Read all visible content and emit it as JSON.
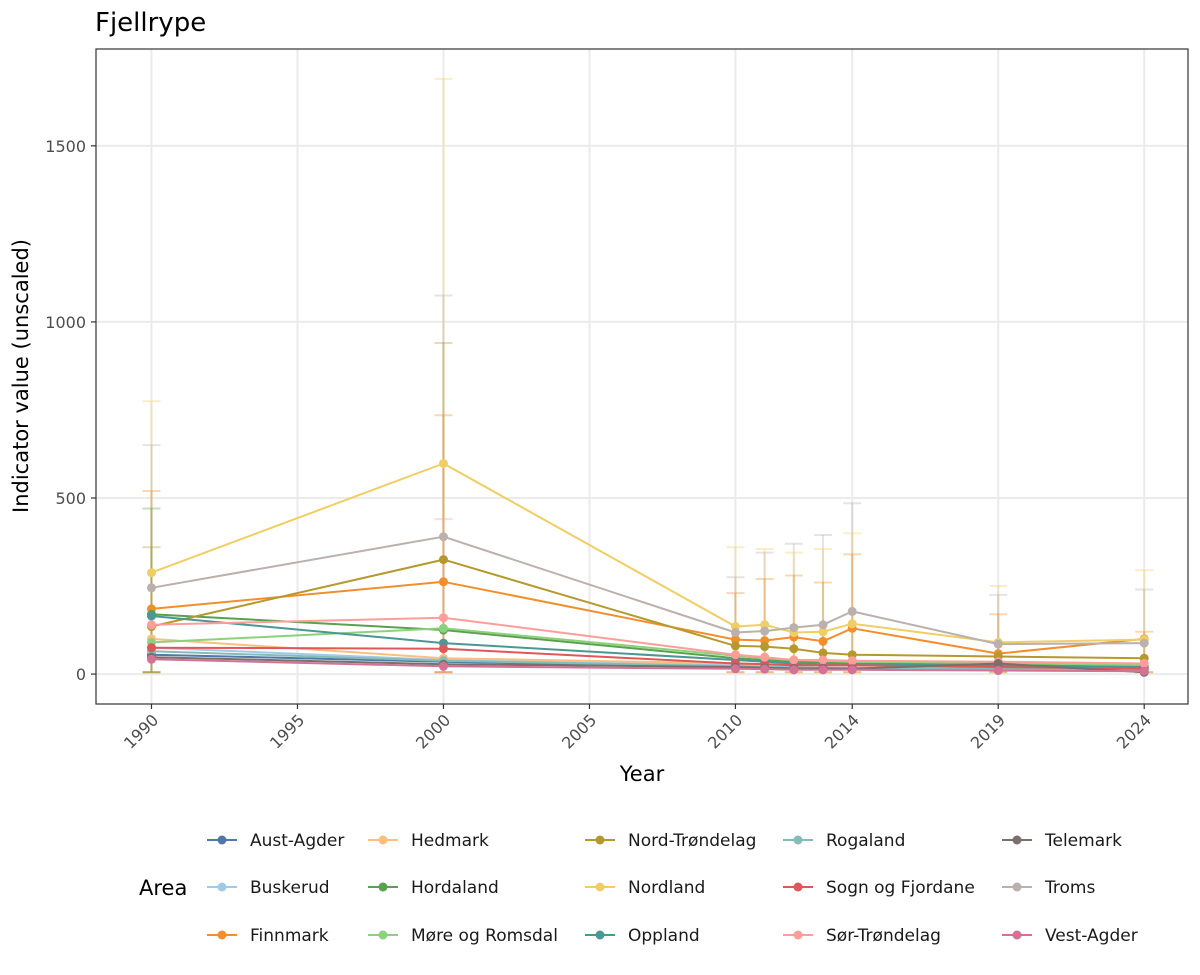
{
  "chart_data": {
    "type": "line",
    "title": "Fjellrype",
    "xlabel": "Year",
    "ylabel": "Indicator value (unscaled)",
    "xlim": [
      1988.1,
      2025.5
    ],
    "ylim": [
      -85,
      1775
    ],
    "x_ticks": [
      1990,
      1995,
      2000,
      2005,
      2010,
      2014,
      2019,
      2024
    ],
    "y_ticks": [
      0,
      500,
      1000,
      1500
    ],
    "grid": true,
    "legend_title": "Area",
    "legend_position": "bottom",
    "series": [
      {
        "name": "Aust-Agder",
        "color": "#4e79a7",
        "points": [
          [
            1990,
            55
          ],
          [
            2000,
            35
          ],
          [
            2010,
            18
          ],
          [
            2011,
            16
          ],
          [
            2012,
            14
          ],
          [
            2013,
            13
          ],
          [
            2014,
            13
          ],
          [
            2019,
            12
          ],
          [
            2024,
            10
          ]
        ]
      },
      {
        "name": "Buskerud",
        "color": "#a0cbe8",
        "points": [
          [
            1990,
            75
          ],
          [
            2000,
            40
          ],
          [
            2010,
            25
          ],
          [
            2011,
            22
          ],
          [
            2012,
            20
          ],
          [
            2013,
            18
          ],
          [
            2014,
            18
          ],
          [
            2019,
            16
          ],
          [
            2024,
            14
          ]
        ]
      },
      {
        "name": "Finnmark",
        "color": "#f28e2b",
        "points": [
          [
            1990,
            185
          ],
          [
            2000,
            262
          ],
          [
            2010,
            98
          ],
          [
            2011,
            95
          ],
          [
            2012,
            105
          ],
          [
            2013,
            93
          ],
          [
            2014,
            130
          ],
          [
            2019,
            58
          ],
          [
            2024,
            100
          ]
        ]
      },
      {
        "name": "Hedmark",
        "color": "#ffbe7d",
        "points": [
          [
            1990,
            100
          ],
          [
            2000,
            45
          ],
          [
            2010,
            30
          ],
          [
            2011,
            28
          ],
          [
            2012,
            26
          ],
          [
            2013,
            25
          ],
          [
            2014,
            24
          ],
          [
            2019,
            22
          ],
          [
            2024,
            20
          ]
        ]
      },
      {
        "name": "Hordaland",
        "color": "#59a14f",
        "points": [
          [
            1990,
            170
          ],
          [
            2000,
            125
          ],
          [
            2010,
            45
          ],
          [
            2011,
            40
          ],
          [
            2012,
            35
          ],
          [
            2013,
            33
          ],
          [
            2014,
            30
          ],
          [
            2019,
            27
          ],
          [
            2024,
            20
          ]
        ]
      },
      {
        "name": "Møre og Romsdal",
        "color": "#8cd17d",
        "points": [
          [
            1990,
            90
          ],
          [
            2000,
            130
          ],
          [
            2010,
            52
          ],
          [
            2011,
            45
          ],
          [
            2012,
            40
          ],
          [
            2013,
            37
          ],
          [
            2014,
            35
          ],
          [
            2019,
            32
          ],
          [
            2024,
            25
          ]
        ]
      },
      {
        "name": "Nord-Trøndelag",
        "color": "#b6992d",
        "points": [
          [
            1990,
            135
          ],
          [
            2000,
            325
          ],
          [
            2010,
            80
          ],
          [
            2011,
            78
          ],
          [
            2012,
            72
          ],
          [
            2013,
            60
          ],
          [
            2014,
            55
          ],
          [
            2019,
            50
          ],
          [
            2024,
            45
          ]
        ]
      },
      {
        "name": "Nordland",
        "color": "#f1ce63",
        "points": [
          [
            1990,
            288
          ],
          [
            2000,
            598
          ],
          [
            2010,
            135
          ],
          [
            2011,
            140
          ],
          [
            2012,
            118
          ],
          [
            2013,
            120
          ],
          [
            2014,
            143
          ],
          [
            2019,
            90
          ],
          [
            2024,
            98
          ]
        ]
      },
      {
        "name": "Oppland",
        "color": "#499894",
        "points": [
          [
            1990,
            165
          ],
          [
            2000,
            88
          ],
          [
            2010,
            40
          ],
          [
            2011,
            35
          ],
          [
            2012,
            30
          ],
          [
            2013,
            28
          ],
          [
            2014,
            27
          ],
          [
            2019,
            24
          ],
          [
            2024,
            20
          ]
        ]
      },
      {
        "name": "Rogaland",
        "color": "#86bcb6",
        "points": [
          [
            1990,
            65
          ],
          [
            2000,
            38
          ],
          [
            2010,
            22
          ],
          [
            2011,
            20
          ],
          [
            2012,
            19
          ],
          [
            2013,
            18
          ],
          [
            2014,
            17
          ],
          [
            2019,
            15
          ],
          [
            2024,
            12
          ]
        ]
      },
      {
        "name": "Sogn og Fjordane",
        "color": "#e15759",
        "points": [
          [
            1990,
            75
          ],
          [
            2000,
            72
          ],
          [
            2010,
            30
          ],
          [
            2011,
            28
          ],
          [
            2012,
            25
          ],
          [
            2013,
            25
          ],
          [
            2014,
            25
          ],
          [
            2019,
            20
          ],
          [
            2024,
            15
          ]
        ]
      },
      {
        "name": "Sør-Trøndelag",
        "color": "#ff9d9a",
        "points": [
          [
            1990,
            140
          ],
          [
            2000,
            160
          ],
          [
            2010,
            55
          ],
          [
            2011,
            48
          ],
          [
            2012,
            40
          ],
          [
            2013,
            40
          ],
          [
            2014,
            38
          ],
          [
            2019,
            35
          ],
          [
            2024,
            30
          ]
        ]
      },
      {
        "name": "Telemark",
        "color": "#79706e",
        "points": [
          [
            1990,
            48
          ],
          [
            2000,
            28
          ],
          [
            2010,
            20
          ],
          [
            2011,
            18
          ],
          [
            2012,
            16
          ],
          [
            2013,
            16
          ],
          [
            2014,
            15
          ],
          [
            2019,
            30
          ],
          [
            2024,
            5
          ]
        ]
      },
      {
        "name": "Troms",
        "color": "#bab0ac",
        "points": [
          [
            1990,
            245
          ],
          [
            2000,
            390
          ],
          [
            2010,
            118
          ],
          [
            2011,
            122
          ],
          [
            2012,
            132
          ],
          [
            2013,
            140
          ],
          [
            2014,
            178
          ],
          [
            2019,
            85
          ],
          [
            2024,
            88
          ]
        ]
      },
      {
        "name": "Vest-Agder",
        "color": "#d37295",
        "points": [
          [
            1990,
            42
          ],
          [
            2000,
            22
          ],
          [
            2010,
            15
          ],
          [
            2011,
            14
          ],
          [
            2012,
            12
          ],
          [
            2013,
            12
          ],
          [
            2014,
            12
          ],
          [
            2019,
            10
          ],
          [
            2024,
            8
          ]
        ]
      }
    ],
    "error_bars": [
      {
        "series": "Nordland",
        "x": 1990,
        "low": 5,
        "high": 775
      },
      {
        "series": "Troms",
        "x": 1990,
        "low": 5,
        "high": 650
      },
      {
        "series": "Finnmark",
        "x": 1990,
        "low": 5,
        "high": 520
      },
      {
        "series": "Hordaland",
        "x": 1990,
        "low": 5,
        "high": 470
      },
      {
        "series": "Nord-Trøndelag",
        "x": 1990,
        "low": 5,
        "high": 360
      },
      {
        "series": "Nordland",
        "x": 2000,
        "low": 5,
        "high": 1690
      },
      {
        "series": "Troms",
        "x": 2000,
        "low": 5,
        "high": 1075
      },
      {
        "series": "Nord-Trøndelag",
        "x": 2000,
        "low": 5,
        "high": 940
      },
      {
        "series": "Finnmark",
        "x": 2000,
        "low": 5,
        "high": 735
      },
      {
        "series": "Sør-Trøndelag",
        "x": 2000,
        "low": 5,
        "high": 440
      },
      {
        "series": "Nordland",
        "x": 2010,
        "low": 5,
        "high": 360
      },
      {
        "series": "Troms",
        "x": 2010,
        "low": 5,
        "high": 275
      },
      {
        "series": "Finnmark",
        "x": 2010,
        "low": 5,
        "high": 230
      },
      {
        "series": "Nordland",
        "x": 2011,
        "low": 5,
        "high": 355
      },
      {
        "series": "Troms",
        "x": 2011,
        "low": 5,
        "high": 345
      },
      {
        "series": "Finnmark",
        "x": 2011,
        "low": 5,
        "high": 270
      },
      {
        "series": "Troms",
        "x": 2012,
        "low": 5,
        "high": 370
      },
      {
        "series": "Nordland",
        "x": 2012,
        "low": 5,
        "high": 345
      },
      {
        "series": "Finnmark",
        "x": 2012,
        "low": 5,
        "high": 280
      },
      {
        "series": "Troms",
        "x": 2013,
        "low": 5,
        "high": 395
      },
      {
        "series": "Nordland",
        "x": 2013,
        "low": 5,
        "high": 355
      },
      {
        "series": "Finnmark",
        "x": 2013,
        "low": 5,
        "high": 260
      },
      {
        "series": "Troms",
        "x": 2014,
        "low": 5,
        "high": 485
      },
      {
        "series": "Nordland",
        "x": 2014,
        "low": 5,
        "high": 400
      },
      {
        "series": "Finnmark",
        "x": 2014,
        "low": 5,
        "high": 340
      },
      {
        "series": "Nordland",
        "x": 2019,
        "low": 5,
        "high": 250
      },
      {
        "series": "Troms",
        "x": 2019,
        "low": 5,
        "high": 225
      },
      {
        "series": "Finnmark",
        "x": 2019,
        "low": 5,
        "high": 170
      },
      {
        "series": "Nordland",
        "x": 2024,
        "low": 5,
        "high": 295
      },
      {
        "series": "Troms",
        "x": 2024,
        "low": 5,
        "high": 240
      },
      {
        "series": "Finnmark",
        "x": 2024,
        "low": 5,
        "high": 120
      }
    ]
  }
}
